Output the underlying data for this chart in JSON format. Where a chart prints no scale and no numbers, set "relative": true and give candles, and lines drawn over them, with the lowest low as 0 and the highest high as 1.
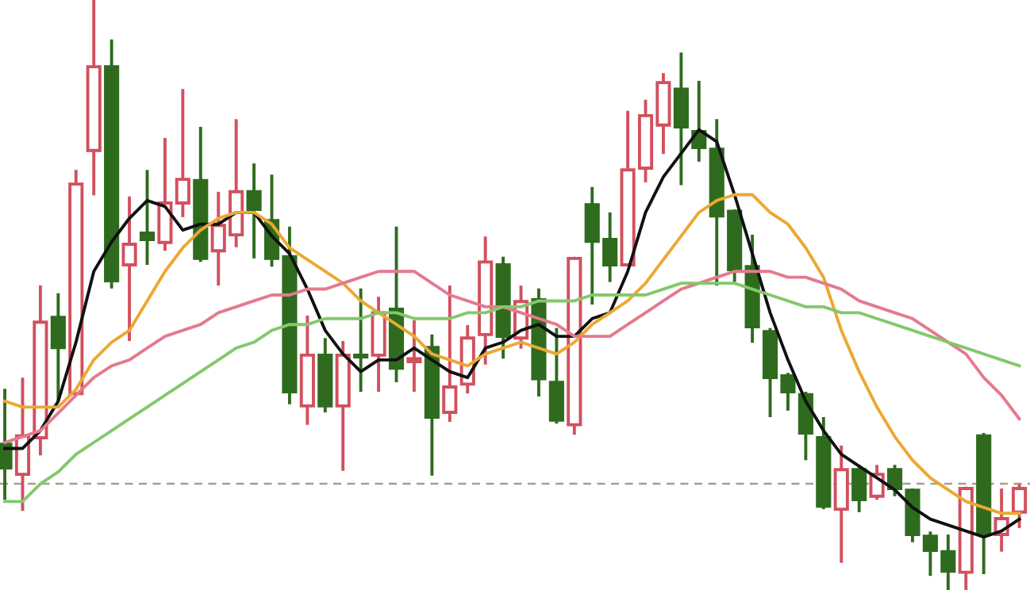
{
  "chart_data": {
    "type": "candlestick",
    "relative": true,
    "categories": [
      null,
      null,
      null,
      null,
      null,
      null,
      null,
      null,
      null,
      null,
      null,
      null,
      null,
      null,
      null,
      null,
      null,
      null,
      null,
      null,
      null,
      null,
      null,
      null,
      null,
      null,
      null,
      null,
      null,
      null,
      null,
      null,
      null,
      null,
      null,
      null,
      null,
      null,
      null,
      null,
      null,
      null,
      null,
      null,
      null,
      null,
      null,
      null,
      null,
      null,
      null,
      null,
      null,
      null,
      null,
      null,
      null,
      null
    ],
    "ohlc": [
      [
        0.247,
        0.341,
        0.153,
        0.207
      ],
      [
        0.196,
        0.36,
        0.134,
        0.261
      ],
      [
        0.258,
        0.516,
        0.228,
        0.454
      ],
      [
        0.462,
        0.503,
        0.32,
        0.411
      ],
      [
        0.333,
        0.712,
        0.333,
        0.688
      ],
      [
        0.745,
        1.0,
        0.669,
        0.887
      ],
      [
        0.887,
        0.933,
        0.511,
        0.524
      ],
      [
        0.551,
        0.667,
        0.422,
        0.586
      ],
      [
        0.605,
        0.712,
        0.551,
        0.594
      ],
      [
        0.589,
        0.766,
        0.575,
        0.656
      ],
      [
        0.656,
        0.849,
        0.632,
        0.696
      ],
      [
        0.694,
        0.785,
        0.556,
        0.562
      ],
      [
        0.575,
        0.675,
        0.516,
        0.618
      ],
      [
        0.602,
        0.798,
        0.581,
        0.675
      ],
      [
        0.675,
        0.723,
        0.562,
        0.645
      ],
      [
        0.626,
        0.704,
        0.548,
        0.562
      ],
      [
        0.565,
        0.616,
        0.315,
        0.336
      ],
      [
        0.312,
        0.465,
        0.28,
        0.398
      ],
      [
        0.398,
        0.427,
        0.301,
        0.312
      ],
      [
        0.312,
        0.422,
        0.202,
        0.398
      ],
      [
        0.398,
        0.511,
        0.336,
        0.395
      ],
      [
        0.398,
        0.497,
        0.336,
        0.47
      ],
      [
        0.476,
        0.616,
        0.352,
        0.376
      ],
      [
        0.387,
        0.457,
        0.336,
        0.392
      ],
      [
        0.411,
        0.433,
        0.194,
        0.293
      ],
      [
        0.301,
        0.516,
        0.285,
        0.344
      ],
      [
        0.349,
        0.449,
        0.333,
        0.427
      ],
      [
        0.433,
        0.599,
        0.382,
        0.556
      ],
      [
        0.551,
        0.565,
        0.392,
        0.43
      ],
      [
        0.427,
        0.516,
        0.409,
        0.489
      ],
      [
        0.492,
        0.511,
        0.328,
        0.358
      ],
      [
        0.352,
        0.444,
        0.282,
        0.288
      ],
      [
        0.28,
        0.565,
        0.263,
        0.562
      ],
      [
        0.653,
        0.683,
        0.484,
        0.591
      ],
      [
        0.594,
        0.64,
        0.522,
        0.551
      ],
      [
        0.551,
        0.812,
        0.551,
        0.712
      ],
      [
        0.715,
        0.831,
        0.691,
        0.804
      ],
      [
        0.788,
        0.876,
        0.739,
        0.86
      ],
      [
        0.849,
        0.911,
        0.686,
        0.785
      ],
      [
        0.777,
        0.863,
        0.726,
        0.75
      ],
      [
        0.747,
        0.798,
        0.516,
        0.634
      ],
      [
        0.642,
        0.645,
        0.522,
        0.543
      ],
      [
        0.548,
        0.602,
        0.419,
        0.446
      ],
      [
        0.438,
        0.444,
        0.293,
        0.36
      ],
      [
        0.363,
        0.368,
        0.304,
        0.336
      ],
      [
        0.331,
        0.336,
        0.22,
        0.266
      ],
      [
        0.258,
        0.293,
        0.137,
        0.142
      ],
      [
        0.137,
        0.245,
        0.046,
        0.204
      ],
      [
        0.204,
        0.212,
        0.132,
        0.153
      ],
      [
        0.159,
        0.212,
        0.153,
        0.196
      ],
      [
        0.204,
        0.212,
        0.159,
        0.172
      ],
      [
        0.169,
        0.172,
        0.081,
        0.094
      ],
      [
        0.091,
        0.099,
        0.024,
        0.067
      ],
      [
        0.065,
        0.094,
        0.0,
        0.032
      ],
      [
        0.03,
        0.175,
        0.0,
        0.172
      ],
      [
        0.261,
        0.266,
        0.027,
        0.094
      ],
      [
        0.094,
        0.172,
        0.065,
        0.121
      ],
      [
        0.132,
        0.18,
        0.105,
        0.172
      ]
    ],
    "colors": [
      "#2f6b1e",
      "#d2505e",
      "#d2505e",
      "#2f6b1e",
      "#d2505e",
      "#d2505e",
      "#2f6b1e",
      "#d2505e",
      "#2f6b1e",
      "#d2505e",
      "#d2505e",
      "#2f6b1e",
      "#d2505e",
      "#d2505e",
      "#2f6b1e",
      "#2f6b1e",
      "#2f6b1e",
      "#d2505e",
      "#2f6b1e",
      "#d2505e",
      "#2f6b1e",
      "#d2505e",
      "#2f6b1e",
      "#d2505e",
      "#2f6b1e",
      "#d2505e",
      "#d2505e",
      "#d2505e",
      "#2f6b1e",
      "#d2505e",
      "#2f6b1e",
      "#2f6b1e",
      "#d2505e",
      "#2f6b1e",
      "#2f6b1e",
      "#d2505e",
      "#d2505e",
      "#d2505e",
      "#2f6b1e",
      "#2f6b1e",
      "#2f6b1e",
      "#2f6b1e",
      "#2f6b1e",
      "#2f6b1e",
      "#2f6b1e",
      "#2f6b1e",
      "#2f6b1e",
      "#d2505e",
      "#2f6b1e",
      "#d2505e",
      "#2f6b1e",
      "#2f6b1e",
      "#2f6b1e",
      "#2f6b1e",
      "#d2505e",
      "#2f6b1e",
      "#d2505e",
      "#d2505e"
    ],
    "series": [
      {
        "type": "line",
        "color": "#111111",
        "values": [
          0.24,
          0.24,
          0.27,
          0.32,
          0.42,
          0.54,
          0.59,
          0.63,
          0.66,
          0.65,
          0.61,
          0.62,
          0.62,
          0.64,
          0.64,
          0.6,
          0.57,
          0.51,
          0.44,
          0.4,
          0.37,
          0.39,
          0.39,
          0.41,
          0.39,
          0.37,
          0.36,
          0.41,
          0.42,
          0.44,
          0.45,
          0.43,
          0.43,
          0.46,
          0.47,
          0.54,
          0.64,
          0.7,
          0.74,
          0.78,
          0.76,
          0.67,
          0.57,
          0.47,
          0.39,
          0.32,
          0.27,
          0.23,
          0.21,
          0.19,
          0.17,
          0.14,
          0.12,
          0.11,
          0.1,
          0.09,
          0.1,
          0.12
        ]
      },
      {
        "type": "line",
        "color": "#eca832",
        "values": [
          0.32,
          0.31,
          0.31,
          0.31,
          0.34,
          0.39,
          0.42,
          0.44,
          0.49,
          0.54,
          0.58,
          0.61,
          0.63,
          0.64,
          0.64,
          0.62,
          0.58,
          0.56,
          0.54,
          0.52,
          0.49,
          0.47,
          0.45,
          0.43,
          0.4,
          0.39,
          0.38,
          0.4,
          0.41,
          0.42,
          0.41,
          0.4,
          0.42,
          0.45,
          0.47,
          0.49,
          0.52,
          0.56,
          0.6,
          0.64,
          0.66,
          0.67,
          0.67,
          0.64,
          0.62,
          0.58,
          0.53,
          0.44,
          0.37,
          0.31,
          0.26,
          0.22,
          0.19,
          0.17,
          0.15,
          0.14,
          0.13,
          0.13
        ]
      },
      {
        "type": "line",
        "color": "#e47a8e",
        "values": [
          0.25,
          0.26,
          0.27,
          0.3,
          0.33,
          0.36,
          0.38,
          0.39,
          0.41,
          0.43,
          0.44,
          0.45,
          0.47,
          0.48,
          0.49,
          0.5,
          0.5,
          0.51,
          0.51,
          0.52,
          0.53,
          0.54,
          0.54,
          0.54,
          0.52,
          0.5,
          0.49,
          0.48,
          0.48,
          0.47,
          0.46,
          0.45,
          0.43,
          0.43,
          0.43,
          0.45,
          0.47,
          0.49,
          0.51,
          0.52,
          0.53,
          0.54,
          0.54,
          0.54,
          0.53,
          0.53,
          0.52,
          0.51,
          0.49,
          0.48,
          0.47,
          0.46,
          0.44,
          0.42,
          0.4,
          0.36,
          0.33,
          0.29
        ]
      },
      {
        "type": "line",
        "color": "#84c86c",
        "values": [
          0.15,
          0.15,
          0.18,
          0.2,
          0.23,
          0.25,
          0.27,
          0.29,
          0.31,
          0.33,
          0.35,
          0.37,
          0.39,
          0.41,
          0.42,
          0.44,
          0.45,
          0.45,
          0.46,
          0.46,
          0.46,
          0.47,
          0.47,
          0.46,
          0.46,
          0.46,
          0.47,
          0.47,
          0.48,
          0.48,
          0.49,
          0.49,
          0.49,
          0.5,
          0.5,
          0.5,
          0.5,
          0.51,
          0.52,
          0.52,
          0.52,
          0.52,
          0.51,
          0.5,
          0.49,
          0.48,
          0.48,
          0.47,
          0.47,
          0.46,
          0.45,
          0.44,
          0.43,
          0.42,
          0.41,
          0.4,
          0.39,
          0.38
        ]
      }
    ],
    "ref_lines": [
      {
        "axis": "y",
        "value": 0.18,
        "color": "#b09a8a",
        "line_style": "dashed"
      }
    ]
  }
}
